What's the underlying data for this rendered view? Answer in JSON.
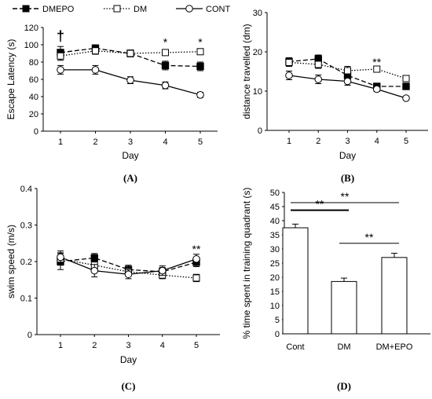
{
  "legend": {
    "entries": [
      "DMEPO",
      "DM",
      "CONT"
    ]
  },
  "chart_data": [
    {
      "id": "A",
      "type": "line",
      "panel_label": "(A)",
      "xlabel": "Day",
      "ylabel": "Escape Latency (s)",
      "x": [
        1,
        2,
        3,
        4,
        5
      ],
      "xticks": [
        "1",
        "2",
        "3",
        "4",
        "5"
      ],
      "ylim": [
        0,
        120
      ],
      "yticks": [
        "0",
        "20",
        "40",
        "60",
        "80",
        "100",
        "120"
      ],
      "series": [
        {
          "name": "DMEPO",
          "values": [
            91,
            96,
            90,
            76,
            75
          ],
          "errors": [
            7,
            4,
            4,
            5,
            5
          ],
          "marker": "filled-square",
          "line": "long-dash"
        },
        {
          "name": "DM",
          "values": [
            87,
            93,
            90,
            91,
            92
          ],
          "errors": [
            5,
            4,
            3,
            3,
            3
          ],
          "marker": "open-square",
          "line": "dotted"
        },
        {
          "name": "CONT",
          "values": [
            71,
            71,
            59,
            53,
            42
          ],
          "errors": [
            5,
            5,
            4,
            4,
            3
          ],
          "marker": "open-circle",
          "line": "solid"
        }
      ],
      "annotations": [
        {
          "text": "†",
          "x": 1,
          "y": 110
        },
        {
          "text": "*",
          "x": 4,
          "y": 104
        },
        {
          "text": "*",
          "x": 5,
          "y": 104
        }
      ]
    },
    {
      "id": "B",
      "type": "line",
      "panel_label": "(B)",
      "xlabel": "Day",
      "ylabel": "distance travelled  (dm)",
      "x": [
        1,
        2,
        3,
        4,
        5
      ],
      "xticks": [
        "1",
        "2",
        "3",
        "4",
        "5"
      ],
      "ylim": [
        0,
        30
      ],
      "yticks": [
        "0",
        "10",
        "20",
        "30"
      ],
      "series": [
        {
          "name": "DMEPO",
          "values": [
            17.5,
            18.2,
            14.0,
            11.2,
            11.2
          ],
          "errors": [
            1.0,
            1.0,
            0.9,
            0.7,
            0.6
          ],
          "marker": "filled-square",
          "line": "long-dash"
        },
        {
          "name": "DM",
          "values": [
            17.3,
            16.8,
            15.2,
            15.6,
            13.2
          ],
          "errors": [
            1.0,
            1.0,
            1.1,
            0.7,
            0.7
          ],
          "marker": "open-square",
          "line": "dotted"
        },
        {
          "name": "CONT",
          "values": [
            14.0,
            13.0,
            12.5,
            10.5,
            8.2
          ],
          "errors": [
            1.1,
            1.1,
            1.0,
            0.6,
            0.4
          ],
          "marker": "open-circle",
          "line": "solid"
        }
      ],
      "annotations": [
        {
          "text": "**",
          "x": 4,
          "y": 17.6
        }
      ]
    },
    {
      "id": "C",
      "type": "line",
      "panel_label": "(C)",
      "xlabel": "Day",
      "ylabel": "swim speed (m/s)",
      "x": [
        1,
        2,
        3,
        4,
        5
      ],
      "xticks": [
        "1",
        "2",
        "3",
        "4",
        "5"
      ],
      "ylim": [
        0,
        0.4
      ],
      "yticks": [
        "0",
        "0.1",
        "0.2",
        "0.3",
        "0.4"
      ],
      "series": [
        {
          "name": "DMEPO",
          "values": [
            0.2,
            0.21,
            0.178,
            0.172,
            0.198
          ],
          "errors": [
            0.022,
            0.012,
            0.012,
            0.012,
            0.012
          ],
          "marker": "filled-square",
          "line": "long-dash"
        },
        {
          "name": "DM",
          "values": [
            0.207,
            0.19,
            0.172,
            0.163,
            0.155
          ],
          "errors": [
            0.017,
            0.012,
            0.012,
            0.01,
            0.01
          ],
          "marker": "open-square",
          "line": "dotted"
        },
        {
          "name": "CONT",
          "values": [
            0.212,
            0.175,
            0.165,
            0.175,
            0.207
          ],
          "errors": [
            0.017,
            0.017,
            0.012,
            0.013,
            0.013
          ],
          "marker": "open-circle",
          "line": "solid"
        }
      ],
      "annotations": [
        {
          "text": "**",
          "x": 5,
          "y": 0.237
        }
      ]
    },
    {
      "id": "D",
      "type": "bar",
      "panel_label": "(D)",
      "xlabel": "",
      "ylabel": "% time spent in training quadrant (s)",
      "categories": [
        "Cont",
        "DM",
        "DM+EPO"
      ],
      "values": [
        37.5,
        18.5,
        27.0
      ],
      "errors": [
        1.3,
        1.2,
        1.5
      ],
      "ylim": [
        0,
        50
      ],
      "yticks": [
        "0",
        "5",
        "10",
        "15",
        "20",
        "25",
        "30",
        "35",
        "40",
        "45",
        "50"
      ],
      "annotations": [
        {
          "text": "**",
          "from": "Cont",
          "to": "DM",
          "y": 43.7
        },
        {
          "text": "**",
          "from": "DM",
          "to": "DM+EPO",
          "y": 32.0
        },
        {
          "text": "**",
          "from": "Cont",
          "to": "DM+EPO",
          "y": 46.4
        }
      ]
    }
  ]
}
